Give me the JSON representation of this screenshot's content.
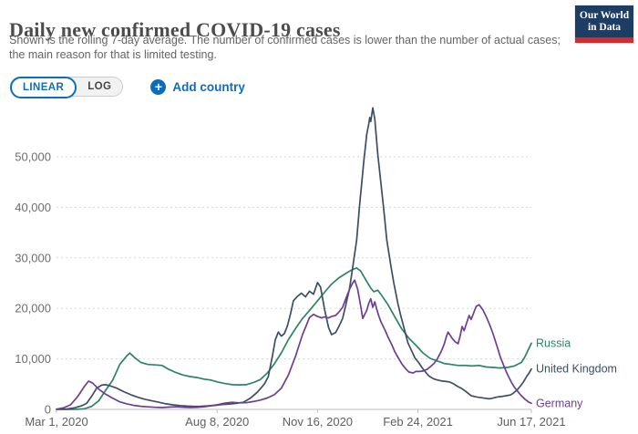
{
  "header": {
    "title": "Daily new confirmed COVID-19 cases",
    "subtitle_line1": "Shown is the rolling 7-day average. The number of confirmed cases is lower than the number of actual cases;",
    "subtitle_line2": "the main reason for that is limited testing.",
    "logo": {
      "line1": "Our World",
      "line2": "in Data",
      "bg_color": "#1d3d63",
      "bar_color": "#d42b2f"
    }
  },
  "controls": {
    "linear_label": "LINEAR",
    "log_label": "LOG",
    "add_country_label": "Add country",
    "accent_color": "#0d6dbd"
  },
  "chart_data": {
    "type": "line",
    "title": "Daily new confirmed COVID-19 cases",
    "xlabel": "",
    "ylabel": "",
    "x_unit": "days since Mar 1, 2020",
    "ylim": [
      0,
      60000
    ],
    "grid": "dashed horizontal",
    "legend_position": "end-of-line",
    "y_ticks": [
      {
        "value": 0,
        "label": "0"
      },
      {
        "value": 10000,
        "label": "10,000"
      },
      {
        "value": 20000,
        "label": "20,000"
      },
      {
        "value": 30000,
        "label": "30,000"
      },
      {
        "value": 40000,
        "label": "40,000"
      },
      {
        "value": 50000,
        "label": "50,000"
      }
    ],
    "x_ticks": [
      {
        "day": 0,
        "label": "Mar 1, 2020"
      },
      {
        "day": 160,
        "label": "Aug 8, 2020"
      },
      {
        "day": 260,
        "label": "Nov 16, 2020"
      },
      {
        "day": 360,
        "label": "Feb 24, 2021"
      },
      {
        "day": 473,
        "label": "Jun 17, 2021"
      }
    ],
    "series": [
      {
        "name": "Russia",
        "color": "#2C8465",
        "points": [
          [
            0,
            0
          ],
          [
            10,
            3
          ],
          [
            20,
            20
          ],
          [
            28,
            120
          ],
          [
            35,
            600
          ],
          [
            42,
            1700
          ],
          [
            49,
            3800
          ],
          [
            56,
            5800
          ],
          [
            63,
            8900
          ],
          [
            70,
            10600
          ],
          [
            73,
            11150
          ],
          [
            77,
            10400
          ],
          [
            84,
            9300
          ],
          [
            91,
            8900
          ],
          [
            98,
            8800
          ],
          [
            105,
            8700
          ],
          [
            112,
            7900
          ],
          [
            119,
            7300
          ],
          [
            126,
            6800
          ],
          [
            133,
            6500
          ],
          [
            140,
            6300
          ],
          [
            147,
            6000
          ],
          [
            154,
            5800
          ],
          [
            161,
            5400
          ],
          [
            168,
            5100
          ],
          [
            175,
            4900
          ],
          [
            182,
            4850
          ],
          [
            189,
            4900
          ],
          [
            196,
            5300
          ],
          [
            203,
            5900
          ],
          [
            210,
            7200
          ],
          [
            217,
            9000
          ],
          [
            224,
            11200
          ],
          [
            231,
            13800
          ],
          [
            238,
            16000
          ],
          [
            245,
            18000
          ],
          [
            252,
            19600
          ],
          [
            260,
            21500
          ],
          [
            267,
            23200
          ],
          [
            274,
            24800
          ],
          [
            281,
            26000
          ],
          [
            288,
            26900
          ],
          [
            295,
            27700
          ],
          [
            299,
            28000
          ],
          [
            303,
            27400
          ],
          [
            309,
            25300
          ],
          [
            313,
            24000
          ],
          [
            316,
            23300
          ],
          [
            320,
            23600
          ],
          [
            323,
            22800
          ],
          [
            330,
            20800
          ],
          [
            337,
            18300
          ],
          [
            344,
            15900
          ],
          [
            351,
            14100
          ],
          [
            358,
            12700
          ],
          [
            365,
            11200
          ],
          [
            372,
            10100
          ],
          [
            379,
            9600
          ],
          [
            386,
            9100
          ],
          [
            393,
            8900
          ],
          [
            400,
            8700
          ],
          [
            407,
            8700
          ],
          [
            414,
            8600
          ],
          [
            421,
            8700
          ],
          [
            428,
            8400
          ],
          [
            435,
            8300
          ],
          [
            442,
            8200
          ],
          [
            449,
            8300
          ],
          [
            456,
            8600
          ],
          [
            463,
            9300
          ],
          [
            466,
            10200
          ],
          [
            469,
            11400
          ],
          [
            473,
            13100
          ]
        ]
      },
      {
        "name": "United Kingdom",
        "color": "#3C4E66",
        "points": [
          [
            0,
            30
          ],
          [
            10,
            80
          ],
          [
            18,
            300
          ],
          [
            25,
            700
          ],
          [
            30,
            1200
          ],
          [
            35,
            2600
          ],
          [
            40,
            4200
          ],
          [
            45,
            4800
          ],
          [
            49,
            4900
          ],
          [
            53,
            4700
          ],
          [
            60,
            4200
          ],
          [
            67,
            3500
          ],
          [
            74,
            2900
          ],
          [
            81,
            2400
          ],
          [
            88,
            2000
          ],
          [
            95,
            1700
          ],
          [
            102,
            1400
          ],
          [
            109,
            1100
          ],
          [
            116,
            900
          ],
          [
            123,
            750
          ],
          [
            130,
            650
          ],
          [
            137,
            600
          ],
          [
            144,
            620
          ],
          [
            151,
            700
          ],
          [
            158,
            800
          ],
          [
            165,
            950
          ],
          [
            172,
            1050
          ],
          [
            179,
            1200
          ],
          [
            186,
            1400
          ],
          [
            193,
            2200
          ],
          [
            200,
            3400
          ],
          [
            207,
            5000
          ],
          [
            211,
            6500
          ],
          [
            215,
            10500
          ],
          [
            218,
            13800
          ],
          [
            221,
            15300
          ],
          [
            224,
            14500
          ],
          [
            227,
            15000
          ],
          [
            230,
            16500
          ],
          [
            233,
            18800
          ],
          [
            236,
            21500
          ],
          [
            240,
            22400
          ],
          [
            244,
            23000
          ],
          [
            248,
            22300
          ],
          [
            252,
            23400
          ],
          [
            256,
            22800
          ],
          [
            260,
            25100
          ],
          [
            263,
            24200
          ],
          [
            267,
            19800
          ],
          [
            271,
            16200
          ],
          [
            274,
            14800
          ],
          [
            278,
            15200
          ],
          [
            281,
            16300
          ],
          [
            285,
            18000
          ],
          [
            288,
            20500
          ],
          [
            292,
            24000
          ],
          [
            295,
            28000
          ],
          [
            299,
            33500
          ],
          [
            302,
            40500
          ],
          [
            306,
            49000
          ],
          [
            309,
            54500
          ],
          [
            311,
            56500
          ],
          [
            312,
            57800
          ],
          [
            313,
            57000
          ],
          [
            315,
            59700
          ],
          [
            317,
            57500
          ],
          [
            320,
            50500
          ],
          [
            323,
            45000
          ],
          [
            326,
            39500
          ],
          [
            329,
            33500
          ],
          [
            333,
            28500
          ],
          [
            336,
            25000
          ],
          [
            340,
            21000
          ],
          [
            343,
            18500
          ],
          [
            347,
            15500
          ],
          [
            350,
            13200
          ],
          [
            354,
            11500
          ],
          [
            357,
            10200
          ],
          [
            361,
            9200
          ],
          [
            364,
            8300
          ],
          [
            368,
            7300
          ],
          [
            371,
            6600
          ],
          [
            375,
            6100
          ],
          [
            378,
            5900
          ],
          [
            382,
            5700
          ],
          [
            385,
            5600
          ],
          [
            389,
            5500
          ],
          [
            392,
            5400
          ],
          [
            396,
            5000
          ],
          [
            399,
            4600
          ],
          [
            403,
            4200
          ],
          [
            406,
            3800
          ],
          [
            410,
            3200
          ],
          [
            413,
            2700
          ],
          [
            417,
            2500
          ],
          [
            420,
            2400
          ],
          [
            424,
            2300
          ],
          [
            427,
            2200
          ],
          [
            431,
            2100
          ],
          [
            434,
            2200
          ],
          [
            438,
            2400
          ],
          [
            441,
            2500
          ],
          [
            445,
            2600
          ],
          [
            448,
            2700
          ],
          [
            452,
            2850
          ],
          [
            455,
            3200
          ],
          [
            459,
            3900
          ],
          [
            462,
            4600
          ],
          [
            465,
            5400
          ],
          [
            468,
            6400
          ],
          [
            471,
            7300
          ],
          [
            473,
            8000
          ]
        ]
      },
      {
        "name": "Germany",
        "color": "#6D3E91",
        "points": [
          [
            0,
            60
          ],
          [
            7,
            300
          ],
          [
            14,
            900
          ],
          [
            21,
            2500
          ],
          [
            28,
            4600
          ],
          [
            32,
            5600
          ],
          [
            36,
            5200
          ],
          [
            42,
            4000
          ],
          [
            49,
            3000
          ],
          [
            56,
            2200
          ],
          [
            63,
            1500
          ],
          [
            70,
            1100
          ],
          [
            77,
            800
          ],
          [
            84,
            620
          ],
          [
            91,
            500
          ],
          [
            98,
            420
          ],
          [
            105,
            360
          ],
          [
            112,
            450
          ],
          [
            119,
            520
          ],
          [
            126,
            420
          ],
          [
            133,
            360
          ],
          [
            140,
            400
          ],
          [
            147,
            520
          ],
          [
            154,
            720
          ],
          [
            161,
            950
          ],
          [
            168,
            1250
          ],
          [
            175,
            1400
          ],
          [
            182,
            1300
          ],
          [
            189,
            1320
          ],
          [
            196,
            1550
          ],
          [
            203,
            1850
          ],
          [
            210,
            2250
          ],
          [
            217,
            2900
          ],
          [
            224,
            4200
          ],
          [
            231,
            6800
          ],
          [
            238,
            10500
          ],
          [
            245,
            14800
          ],
          [
            252,
            18200
          ],
          [
            256,
            18800
          ],
          [
            260,
            18400
          ],
          [
            264,
            18100
          ],
          [
            267,
            18300
          ],
          [
            271,
            18100
          ],
          [
            274,
            18400
          ],
          [
            278,
            18600
          ],
          [
            281,
            19200
          ],
          [
            285,
            20200
          ],
          [
            288,
            21800
          ],
          [
            292,
            23800
          ],
          [
            295,
            25000
          ],
          [
            297,
            25600
          ],
          [
            300,
            23800
          ],
          [
            303,
            20500
          ],
          [
            305,
            18000
          ],
          [
            307,
            18800
          ],
          [
            309,
            19600
          ],
          [
            311,
            21000
          ],
          [
            313,
            21900
          ],
          [
            315,
            20200
          ],
          [
            317,
            21300
          ],
          [
            319,
            19800
          ],
          [
            321,
            18500
          ],
          [
            323,
            17400
          ],
          [
            327,
            15800
          ],
          [
            330,
            14400
          ],
          [
            334,
            12800
          ],
          [
            337,
            11400
          ],
          [
            341,
            10000
          ],
          [
            344,
            9000
          ],
          [
            348,
            8000
          ],
          [
            351,
            7400
          ],
          [
            355,
            7200
          ],
          [
            358,
            7500
          ],
          [
            362,
            7500
          ],
          [
            365,
            7600
          ],
          [
            369,
            7900
          ],
          [
            372,
            8400
          ],
          [
            376,
            9100
          ],
          [
            379,
            9900
          ],
          [
            383,
            11400
          ],
          [
            386,
            12800
          ],
          [
            388,
            14200
          ],
          [
            390,
            15300
          ],
          [
            392,
            14700
          ],
          [
            394,
            14100
          ],
          [
            397,
            13400
          ],
          [
            400,
            13000
          ],
          [
            402,
            14500
          ],
          [
            404,
            16400
          ],
          [
            406,
            15600
          ],
          [
            408,
            16800
          ],
          [
            411,
            18600
          ],
          [
            413,
            17800
          ],
          [
            415,
            18800
          ],
          [
            418,
            20400
          ],
          [
            421,
            20700
          ],
          [
            423,
            20200
          ],
          [
            425,
            19600
          ],
          [
            428,
            18400
          ],
          [
            432,
            16500
          ],
          [
            435,
            14900
          ],
          [
            439,
            12400
          ],
          [
            442,
            10400
          ],
          [
            446,
            8400
          ],
          [
            449,
            7000
          ],
          [
            453,
            5400
          ],
          [
            456,
            4400
          ],
          [
            460,
            3400
          ],
          [
            463,
            2700
          ],
          [
            467,
            1950
          ],
          [
            470,
            1500
          ],
          [
            473,
            1200
          ]
        ]
      }
    ]
  }
}
